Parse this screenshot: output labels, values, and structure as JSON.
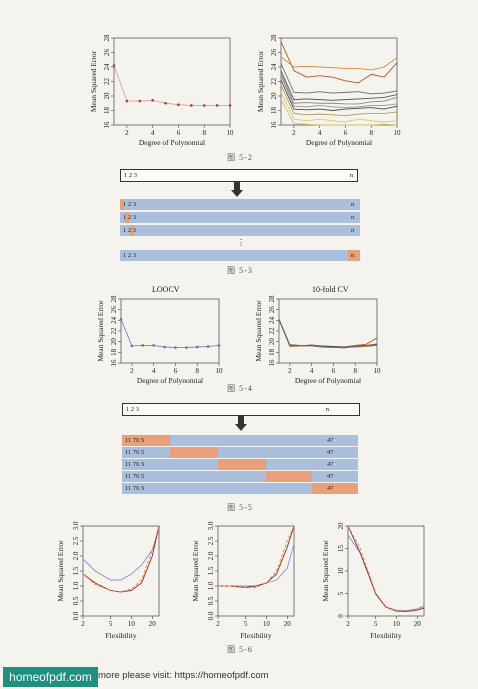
{
  "figures": {
    "fig_5_2": {
      "caption": "图  5-2",
      "left": {
        "xlabel": "Degree of Polynomial",
        "ylabel": "Mean Squared Error",
        "x_ticks": [
          "2",
          "4",
          "6",
          "8",
          "10"
        ],
        "y_ticks": [
          "16",
          "18",
          "20",
          "22",
          "24",
          "26",
          "28"
        ]
      },
      "right": {
        "xlabel": "Degree of Polynomial",
        "ylabel": "Mean Squared Error",
        "x_ticks": [
          "2",
          "4",
          "6",
          "8",
          "10"
        ],
        "y_ticks": [
          "16",
          "18",
          "20",
          "22",
          "24",
          "26",
          "28"
        ]
      }
    },
    "fig_5_3": {
      "caption": "图  5-3",
      "top_bar": {
        "label": "1 2 3",
        "n": "n"
      },
      "rows": [
        {
          "label": "1 2 3",
          "n": "n"
        },
        {
          "label": "1 2 3",
          "n": "n"
        },
        {
          "label": "1 2 3",
          "n": "n"
        },
        {
          "label": "1 2 3",
          "n": "n"
        }
      ],
      "ellipsis": "⋮",
      "highlight_color": "#e8a07a",
      "row_color": "#a9bfdc"
    },
    "fig_5_4": {
      "caption": "图  5-4",
      "left": {
        "title": "LOOCV",
        "xlabel": "Degree of Polynomial",
        "ylabel": "Mean Squared Error",
        "x_ticks": [
          "2",
          "4",
          "6",
          "8",
          "10"
        ],
        "y_ticks": [
          "16",
          "18",
          "20",
          "22",
          "24",
          "26",
          "28"
        ]
      },
      "right": {
        "title": "10-fold CV",
        "xlabel": "Degree of Polynomial",
        "ylabel": "Mean Squared Error",
        "x_ticks": [
          "2",
          "4",
          "6",
          "8",
          "10"
        ],
        "y_ticks": [
          "16",
          "18",
          "20",
          "22",
          "24",
          "26",
          "28"
        ]
      }
    },
    "fig_5_5": {
      "caption": "图  5-5",
      "top_bar": {
        "label": "1 2 3",
        "n": "n"
      },
      "rows": [
        {
          "label": "11 76 5",
          "n": "47"
        },
        {
          "label": "11 76 5",
          "n": "47"
        },
        {
          "label": "11 76 5",
          "n": "47"
        },
        {
          "label": "11 76 5",
          "n": "47"
        },
        {
          "label": "11 76 5",
          "n": "47"
        }
      ]
    },
    "fig_5_6": {
      "caption": "图  5-6",
      "left": {
        "xlabel": "Flexibility",
        "ylabel": "Mean Squared Error",
        "x_ticks": [
          "2",
          "5",
          "10",
          "20"
        ],
        "y_ticks": [
          "0.0",
          "0.5",
          "1.0",
          "1.5",
          "2.0",
          "2.5",
          "3.0"
        ]
      },
      "middle": {
        "xlabel": "Flexibility",
        "ylabel": "Mean Squared Error",
        "x_ticks": [
          "2",
          "5",
          "10",
          "20"
        ],
        "y_ticks": [
          "0.0",
          "0.5",
          "1.0",
          "1.5",
          "2.0",
          "2.5",
          "3.0"
        ]
      },
      "right": {
        "xlabel": "Flexibility",
        "ylabel": "Mean Squared Error",
        "x_ticks": [
          "2",
          "5",
          "10",
          "20"
        ],
        "y_ticks": [
          "0",
          "5",
          "10",
          "15",
          "20"
        ]
      }
    }
  },
  "chart_data": [
    {
      "type": "line",
      "x": [
        1,
        2,
        3,
        4,
        5,
        6,
        7,
        8,
        9,
        10
      ],
      "series": [
        {
          "values": [
            24.2,
            19.3,
            19.3,
            19.4,
            19.0,
            18.8,
            18.7,
            18.7,
            18.7,
            18.7
          ]
        }
      ],
      "xlim": [
        1,
        10
      ],
      "ylim": [
        16,
        28
      ]
    },
    {
      "type": "line",
      "x": [
        1,
        2,
        3,
        4,
        5,
        6,
        7,
        8,
        9,
        10
      ],
      "series": [
        {
          "values": [
            27.5,
            23.5,
            22.6,
            22.8,
            22.6,
            22.1,
            21.8,
            23.0,
            22.6,
            24.6
          ]
        },
        {
          "values": [
            25.4,
            24.0,
            24.1,
            24.0,
            23.9,
            23.8,
            23.8,
            23.6,
            24.0,
            25.3
          ]
        },
        {
          "values": [
            24.5,
            20.5,
            20.4,
            20.6,
            20.4,
            20.5,
            20.6,
            20.3,
            20.4,
            20.7
          ]
        },
        {
          "values": [
            23.5,
            19.5,
            19.6,
            19.5,
            19.4,
            19.5,
            19.6,
            19.7,
            19.8,
            20.2
          ]
        },
        {
          "values": [
            23.1,
            19.0,
            19.1,
            19.0,
            19.0,
            18.9,
            18.9,
            19.2,
            19.3,
            19.8
          ]
        },
        {
          "values": [
            22.8,
            18.6,
            18.5,
            18.7,
            18.5,
            18.4,
            18.5,
            18.7,
            18.7,
            18.9
          ]
        },
        {
          "values": [
            22.2,
            18.2,
            18.1,
            18.2,
            18.0,
            18.2,
            18.3,
            18.4,
            18.2,
            18.6
          ]
        },
        {
          "values": [
            21.5,
            17.6,
            17.4,
            17.5,
            17.4,
            17.3,
            17.5,
            17.6,
            17.6,
            17.8
          ]
        },
        {
          "values": [
            20.5,
            16.8,
            16.6,
            16.8,
            16.6,
            16.4,
            16.8,
            16.6,
            16.4,
            16.6
          ]
        },
        {
          "values": [
            19.5,
            16.2,
            16.1,
            16.0,
            15.9,
            15.9,
            16.0,
            16.0,
            16.1,
            16.0
          ]
        }
      ],
      "xlim": [
        1,
        10
      ],
      "ylim": [
        16,
        28
      ]
    },
    {
      "type": "line",
      "x": [
        1,
        2,
        3,
        4,
        5,
        6,
        7,
        8,
        9,
        10
      ],
      "series": [
        {
          "values": [
            24.2,
            19.2,
            19.3,
            19.3,
            19.0,
            18.9,
            18.9,
            19.0,
            19.1,
            19.3
          ]
        }
      ],
      "xlim": [
        1,
        10
      ],
      "ylim": [
        16,
        28
      ]
    },
    {
      "type": "line",
      "x": [
        1,
        2,
        3,
        4,
        5,
        6,
        7,
        8,
        9,
        10
      ],
      "series": [
        {
          "values": [
            24.2,
            19.3,
            19.3,
            19.3,
            19.0,
            19.0,
            18.9,
            19.1,
            19.3,
            19.6
          ]
        },
        {
          "values": [
            24.2,
            19.2,
            19.2,
            19.4,
            19.1,
            19.0,
            19.0,
            19.1,
            19.2,
            19.3
          ]
        },
        {
          "values": [
            24.2,
            19.1,
            19.2,
            19.2,
            19.0,
            18.9,
            19.0,
            19.3,
            19.5,
            20.7
          ]
        },
        {
          "values": [
            24.2,
            19.4,
            19.3,
            19.3,
            19.2,
            19.1,
            19.0,
            19.0,
            19.2,
            19.4
          ]
        },
        {
          "values": [
            24.1,
            19.2,
            19.3,
            19.2,
            19.1,
            18.9,
            18.9,
            19.0,
            19.1,
            19.3
          ]
        },
        {
          "values": [
            24.2,
            19.3,
            19.2,
            19.3,
            19.0,
            19.0,
            18.8,
            19.2,
            19.3,
            19.5
          ]
        }
      ],
      "xlim": [
        1,
        10
      ],
      "ylim": [
        16,
        28
      ]
    },
    {
      "type": "line",
      "x": [
        2,
        3,
        5,
        7,
        10,
        14,
        20,
        25
      ],
      "series": [
        {
          "values": [
            1.9,
            1.5,
            1.2,
            1.2,
            1.4,
            1.7,
            2.2,
            2.9
          ]
        },
        {
          "values": [
            1.4,
            1.1,
            0.85,
            0.8,
            0.85,
            1.1,
            2.0,
            3.1
          ]
        },
        {
          "values": [
            1.4,
            1.05,
            0.85,
            0.8,
            0.9,
            1.2,
            2.2,
            3.2
          ]
        }
      ],
      "xlim": [
        2,
        25
      ],
      "ylim": [
        0,
        3
      ]
    },
    {
      "type": "line",
      "x": [
        2,
        3,
        5,
        7,
        10,
        14,
        20,
        25
      ],
      "series": [
        {
          "values": [
            1.0,
            1.0,
            1.0,
            1.0,
            1.1,
            1.2,
            1.6,
            2.4
          ]
        },
        {
          "values": [
            1.0,
            1.0,
            0.95,
            1.0,
            1.1,
            1.4,
            2.3,
            3.1
          ]
        },
        {
          "values": [
            1.0,
            1.0,
            0.95,
            0.95,
            1.1,
            1.5,
            2.5,
            3.2
          ]
        }
      ],
      "xlim": [
        2,
        25
      ],
      "ylim": [
        0,
        3
      ]
    },
    {
      "type": "line",
      "x": [
        2,
        3,
        4,
        5,
        7,
        10,
        14,
        20,
        25
      ],
      "series": [
        {
          "values": [
            18,
            14,
            9,
            5,
            2,
            1.3,
            1.2,
            1.6,
            2.3
          ]
        },
        {
          "values": [
            20,
            14,
            9,
            5,
            2,
            1.1,
            1.0,
            1.3,
            1.8
          ]
        },
        {
          "values": [
            20,
            15,
            9.5,
            5.2,
            2.1,
            1.2,
            1.1,
            1.4,
            2.0
          ]
        }
      ],
      "xlim": [
        2,
        25
      ],
      "ylim": [
        0,
        20
      ]
    }
  ],
  "footer": {
    "logo_text": "homeofpdf.com",
    "note": "more please visit: https://homeofpdf.com"
  }
}
